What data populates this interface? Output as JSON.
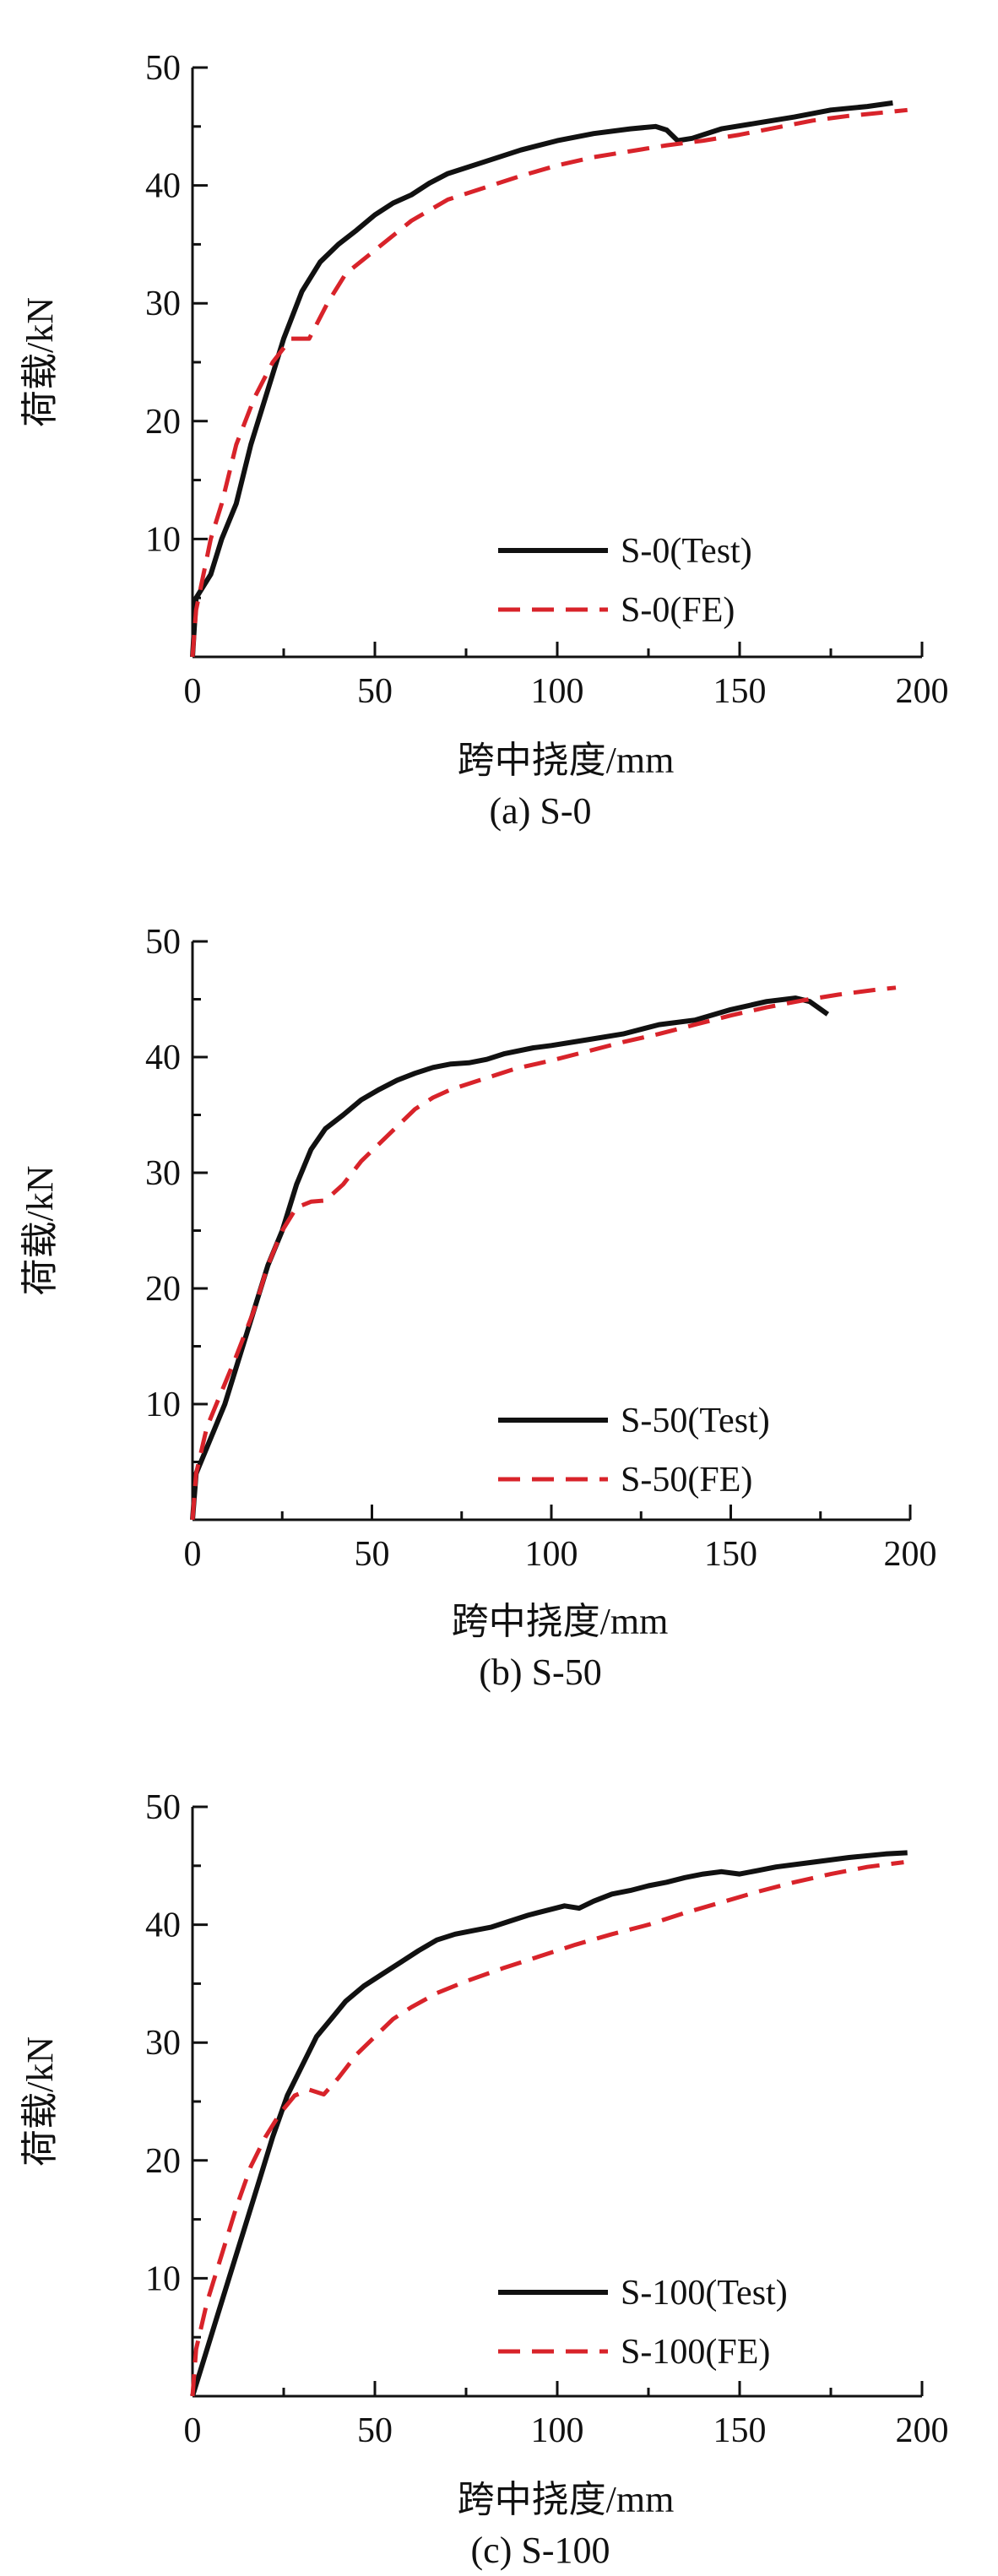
{
  "colors": {
    "test": "#111111",
    "fe": "#d8232a"
  },
  "chart_data": [
    {
      "type": "line",
      "caption": "(a) S-0",
      "xlabel": "跨中挠度/mm",
      "ylabel": "荷载/kN",
      "xlim": [
        0,
        200
      ],
      "ylim": [
        0,
        50
      ],
      "x_ticks": [
        "0",
        "50",
        "100",
        "150",
        "200"
      ],
      "y_ticks": [
        "10",
        "20",
        "30",
        "40",
        "50"
      ],
      "legend_position": "bottom-right",
      "series": [
        {
          "name": "S-0(Test)",
          "style": "solid",
          "points": [
            [
              0,
              0
            ],
            [
              1,
              5
            ],
            [
              5,
              7
            ],
            [
              8,
              10
            ],
            [
              12,
              13
            ],
            [
              16,
              18
            ],
            [
              20,
              22
            ],
            [
              25,
              27
            ],
            [
              30,
              31
            ],
            [
              35,
              33.5
            ],
            [
              40,
              35
            ],
            [
              45,
              36.2
            ],
            [
              50,
              37.5
            ],
            [
              55,
              38.5
            ],
            [
              60,
              39.2
            ],
            [
              65,
              40.2
            ],
            [
              70,
              41
            ],
            [
              80,
              42
            ],
            [
              90,
              43
            ],
            [
              100,
              43.8
            ],
            [
              110,
              44.4
            ],
            [
              120,
              44.8
            ],
            [
              127,
              45
            ],
            [
              130,
              44.7
            ],
            [
              133,
              43.8
            ],
            [
              137,
              44
            ],
            [
              145,
              44.8
            ],
            [
              155,
              45.3
            ],
            [
              165,
              45.8
            ],
            [
              175,
              46.4
            ],
            [
              185,
              46.7
            ],
            [
              192,
              47
            ]
          ]
        },
        {
          "name": "S-0(FE)",
          "style": "dashed",
          "points": [
            [
              0,
              0
            ],
            [
              1,
              4
            ],
            [
              3,
              7
            ],
            [
              5,
              10
            ],
            [
              8,
              13
            ],
            [
              12,
              18
            ],
            [
              17,
              22
            ],
            [
              22,
              25
            ],
            [
              27,
              27
            ],
            [
              32,
              27
            ],
            [
              37,
              30
            ],
            [
              42,
              32.5
            ],
            [
              50,
              34.5
            ],
            [
              60,
              37
            ],
            [
              70,
              38.8
            ],
            [
              80,
              39.8
            ],
            [
              90,
              40.8
            ],
            [
              100,
              41.7
            ],
            [
              110,
              42.4
            ],
            [
              120,
              42.9
            ],
            [
              130,
              43.4
            ],
            [
              140,
              43.8
            ],
            [
              150,
              44.3
            ],
            [
              160,
              44.9
            ],
            [
              170,
              45.5
            ],
            [
              180,
              45.9
            ],
            [
              190,
              46.2
            ],
            [
              196,
              46.4
            ]
          ]
        }
      ]
    },
    {
      "type": "line",
      "caption": "(b) S-50",
      "xlabel": "跨中挠度/mm",
      "ylabel": "荷载/kN",
      "xlim": [
        0,
        200
      ],
      "ylim": [
        0,
        50
      ],
      "x_ticks": [
        "0",
        "50",
        "100",
        "150",
        "200"
      ],
      "y_ticks": [
        "10",
        "20",
        "30",
        "40",
        "50"
      ],
      "legend_position": "bottom-right",
      "series": [
        {
          "name": "S-50(Test)",
          "style": "solid",
          "points": [
            [
              0,
              0
            ],
            [
              1,
              4
            ],
            [
              5,
              7
            ],
            [
              9,
              10
            ],
            [
              13,
              14
            ],
            [
              17,
              18
            ],
            [
              21,
              22
            ],
            [
              25,
              25
            ],
            [
              29,
              29
            ],
            [
              33,
              32
            ],
            [
              37,
              33.8
            ],
            [
              42,
              35
            ],
            [
              47,
              36.3
            ],
            [
              52,
              37.2
            ],
            [
              57,
              38
            ],
            [
              62,
              38.6
            ],
            [
              67,
              39.1
            ],
            [
              72,
              39.4
            ],
            [
              77,
              39.5
            ],
            [
              82,
              39.8
            ],
            [
              87,
              40.3
            ],
            [
              95,
              40.8
            ],
            [
              100,
              41
            ],
            [
              110,
              41.5
            ],
            [
              120,
              42
            ],
            [
              130,
              42.8
            ],
            [
              140,
              43.2
            ],
            [
              150,
              44.1
            ],
            [
              160,
              44.8
            ],
            [
              168,
              45.1
            ],
            [
              172,
              44.8
            ],
            [
              177,
              43.7
            ]
          ]
        },
        {
          "name": "S-50(FE)",
          "style": "dashed",
          "points": [
            [
              0,
              0
            ],
            [
              1,
              4
            ],
            [
              4,
              8
            ],
            [
              8,
              11
            ],
            [
              12,
              14
            ],
            [
              17,
              18
            ],
            [
              21,
              22
            ],
            [
              25,
              25
            ],
            [
              29,
              27
            ],
            [
              33,
              27.5
            ],
            [
              37,
              27.6
            ],
            [
              42,
              29
            ],
            [
              47,
              31
            ],
            [
              52,
              32.5
            ],
            [
              57,
              34
            ],
            [
              62,
              35.5
            ],
            [
              67,
              36.5
            ],
            [
              72,
              37.2
            ],
            [
              80,
              38
            ],
            [
              90,
              39
            ],
            [
              100,
              39.7
            ],
            [
              110,
              40.5
            ],
            [
              120,
              41.3
            ],
            [
              130,
              42
            ],
            [
              140,
              42.8
            ],
            [
              150,
              43.6
            ],
            [
              160,
              44.3
            ],
            [
              170,
              44.9
            ],
            [
              180,
              45.4
            ],
            [
              190,
              45.8
            ],
            [
              196,
              46
            ]
          ]
        }
      ]
    },
    {
      "type": "line",
      "caption": "(c) S-100",
      "xlabel": "跨中挠度/mm",
      "ylabel": "荷载/kN",
      "xlim": [
        0,
        200
      ],
      "ylim": [
        0,
        50
      ],
      "x_ticks": [
        "0",
        "50",
        "100",
        "150",
        "200"
      ],
      "y_ticks": [
        "10",
        "20",
        "30",
        "40",
        "50"
      ],
      "legend_position": "bottom-right",
      "series": [
        {
          "name": "S-100(Test)",
          "style": "solid",
          "points": [
            [
              0,
              0
            ],
            [
              3,
              3
            ],
            [
              6,
              6
            ],
            [
              10,
              10
            ],
            [
              14,
              14
            ],
            [
              18,
              18
            ],
            [
              22,
              22
            ],
            [
              26,
              25.5
            ],
            [
              30,
              28
            ],
            [
              34,
              30.5
            ],
            [
              38,
              32
            ],
            [
              42,
              33.5
            ],
            [
              47,
              34.8
            ],
            [
              52,
              35.8
            ],
            [
              57,
              36.8
            ],
            [
              62,
              37.8
            ],
            [
              67,
              38.7
            ],
            [
              72,
              39.2
            ],
            [
              77,
              39.5
            ],
            [
              82,
              39.8
            ],
            [
              87,
              40.3
            ],
            [
              92,
              40.8
            ],
            [
              97,
              41.2
            ],
            [
              102,
              41.6
            ],
            [
              106,
              41.4
            ],
            [
              110,
              42
            ],
            [
              115,
              42.6
            ],
            [
              120,
              42.9
            ],
            [
              125,
              43.3
            ],
            [
              130,
              43.6
            ],
            [
              135,
              44
            ],
            [
              140,
              44.3
            ],
            [
              145,
              44.5
            ],
            [
              150,
              44.3
            ],
            [
              155,
              44.6
            ],
            [
              160,
              44.9
            ],
            [
              170,
              45.3
            ],
            [
              180,
              45.7
            ],
            [
              190,
              46
            ],
            [
              196,
              46.1
            ]
          ]
        },
        {
          "name": "S-100(FE)",
          "style": "dashed",
          "points": [
            [
              0,
              0
            ],
            [
              1,
              4
            ],
            [
              4,
              8
            ],
            [
              8,
              12
            ],
            [
              12,
              16
            ],
            [
              16,
              19.5
            ],
            [
              20,
              22
            ],
            [
              24,
              24
            ],
            [
              28,
              25.5
            ],
            [
              32,
              26
            ],
            [
              36,
              25.6
            ],
            [
              40,
              27
            ],
            [
              45,
              29
            ],
            [
              50,
              30.5
            ],
            [
              55,
              32
            ],
            [
              60,
              33
            ],
            [
              67,
              34.2
            ],
            [
              75,
              35.2
            ],
            [
              85,
              36.3
            ],
            [
              95,
              37.3
            ],
            [
              105,
              38.3
            ],
            [
              115,
              39.2
            ],
            [
              125,
              40
            ],
            [
              135,
              41
            ],
            [
              145,
              41.9
            ],
            [
              155,
              42.8
            ],
            [
              165,
              43.6
            ],
            [
              175,
              44.3
            ],
            [
              185,
              44.9
            ],
            [
              195,
              45.3
            ]
          ]
        }
      ]
    }
  ]
}
